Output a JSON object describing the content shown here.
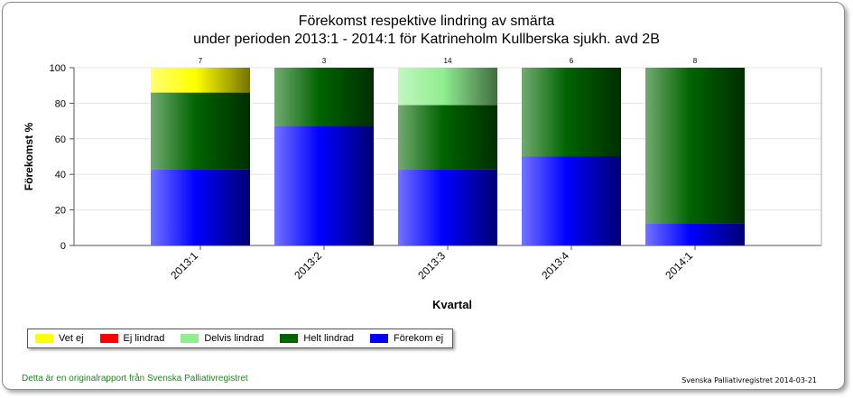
{
  "chart_data": {
    "type": "bar",
    "stacked": true,
    "title_line1": "Förekomst respektive lindring av smärta",
    "title_line2": "under perioden 2013:1 - 2014:1 för Katrineholm Kullberska sjukh. avd 2B",
    "xlabel": "Kvartal",
    "ylabel": "Förekomst %",
    "ylim": [
      0,
      100
    ],
    "yticks": [
      "0",
      "20",
      "40",
      "60",
      "80",
      "100"
    ],
    "categories": [
      "2013:1",
      "2013:2",
      "2013:3",
      "2013:4",
      "2014:1"
    ],
    "counts": [
      "7",
      "3",
      "14",
      "6",
      "8"
    ],
    "series": [
      {
        "name": "Förekom ej",
        "color": "#0000ff",
        "values": [
          43,
          67,
          43,
          50,
          12.5
        ]
      },
      {
        "name": "Helt lindrad",
        "color": "#006400",
        "values": [
          43,
          33,
          36,
          50,
          87.5
        ]
      },
      {
        "name": "Delvis lindrad",
        "color": "#90ee90",
        "values": [
          0,
          0,
          21,
          0,
          0
        ]
      },
      {
        "name": "Ej lindrad",
        "color": "#ff0000",
        "values": [
          0,
          0,
          0,
          0,
          0
        ]
      },
      {
        "name": "Vet ej",
        "color": "#ffff00",
        "values": [
          14,
          0,
          0,
          0,
          0
        ]
      }
    ],
    "legend_order": [
      "Vet ej",
      "Ej lindrad",
      "Delvis lindrad",
      "Helt lindrad",
      "Förekom ej"
    ],
    "grid": true,
    "legend_position": "bottom-left"
  },
  "footer": {
    "left": "Detta är en originalrapport från Svenska Palliativregistret",
    "right": "Svenska Palliativregistret 2014-03-21"
  }
}
